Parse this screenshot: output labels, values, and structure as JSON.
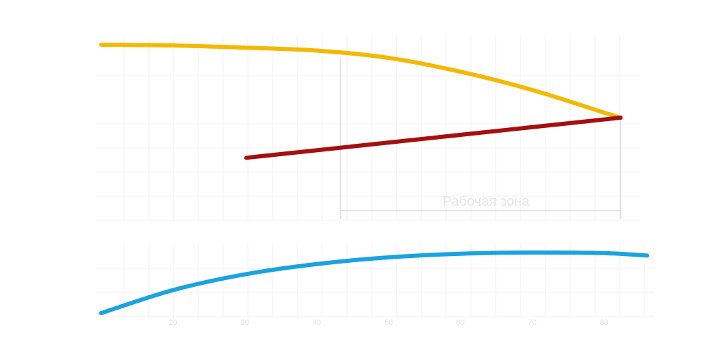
{
  "chart_data": {
    "type": "line",
    "x_ticks": [
      "20",
      "30",
      "40",
      "50",
      "60",
      "70",
      "80"
    ],
    "xlim": [
      10,
      86
    ],
    "grid": true,
    "series": [
      {
        "name": "",
        "color": "#f5b800",
        "panel": "top",
        "x": [
          10,
          20,
          30,
          40,
          50,
          60,
          70,
          80,
          82.3
        ],
        "y": [
          1.0,
          0.99,
          0.96,
          0.92,
          0.82,
          0.63,
          0.38,
          0.07,
          0.0
        ]
      },
      {
        "name": "",
        "color": "#a50f0f",
        "panel": "top",
        "x": [
          30.2,
          82.3
        ],
        "y": [
          -0.55,
          0.0
        ]
      },
      {
        "name": "",
        "color": "#1aa3e0",
        "panel": "bottom",
        "x": [
          10,
          20,
          30,
          40,
          50,
          60,
          70,
          80,
          86
        ],
        "y": [
          0.0,
          0.38,
          0.64,
          0.81,
          0.92,
          0.98,
          1.0,
          0.99,
          0.95
        ]
      }
    ],
    "annotations": [
      {
        "text": "Рабочая зона",
        "x_range": [
          43.3,
          82.3
        ]
      }
    ]
  }
}
